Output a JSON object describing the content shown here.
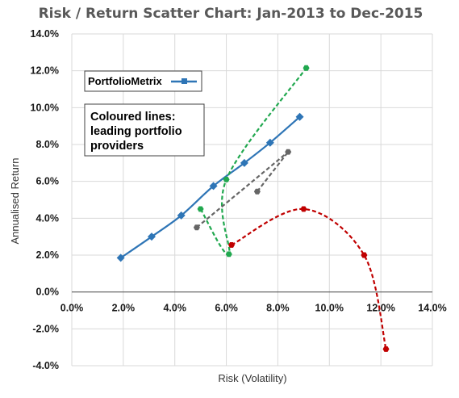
{
  "chart_data": {
    "type": "scatter",
    "title": "Risk / Return Scatter Chart: Jan-2013 to Dec-2015",
    "xlabel": "Risk (Volatility)",
    "ylabel": "Annualised Return",
    "xlim": [
      0,
      14
    ],
    "ylim": [
      -4,
      14
    ],
    "x_ticks": [
      0,
      2,
      4,
      6,
      8,
      10,
      12,
      14
    ],
    "y_ticks": [
      -4,
      -2,
      0,
      2,
      4,
      6,
      8,
      10,
      12,
      14
    ],
    "x_tick_labels": [
      "0.0%",
      "2.0%",
      "4.0%",
      "6.0%",
      "8.0%",
      "10.0%",
      "12.0%",
      "14.0%"
    ],
    "y_tick_labels": [
      "-4.0%",
      "-2.0%",
      "0.0%",
      "2.0%",
      "4.0%",
      "6.0%",
      "8.0%",
      "10.0%",
      "12.0%",
      "14.0%"
    ],
    "grid": true,
    "legend": {
      "position": "top-left",
      "entries": [
        "PortfolioMetrix"
      ]
    },
    "annotation": [
      "Coloured lines:",
      "leading portfolio",
      "providers"
    ],
    "series": [
      {
        "name": "PortfolioMetrix",
        "color": "#2e75b6",
        "style": "solid",
        "marker": "diamond",
        "points": [
          [
            1.9,
            1.85
          ],
          [
            3.1,
            3.0
          ],
          [
            4.25,
            4.15
          ],
          [
            5.5,
            5.75
          ],
          [
            6.7,
            7.0
          ],
          [
            7.7,
            8.1
          ],
          [
            8.85,
            9.5
          ]
        ]
      },
      {
        "color": "#21a84f",
        "style": "dashed",
        "marker": "hexagon",
        "points": [
          [
            5.0,
            4.5
          ],
          [
            6.1,
            2.05
          ],
          [
            6.0,
            6.1
          ],
          [
            9.1,
            12.15
          ]
        ]
      },
      {
        "color": "#c00000",
        "style": "dashed",
        "marker": "hexagon",
        "points": [
          [
            6.2,
            2.55
          ],
          [
            9.0,
            4.5
          ],
          [
            11.35,
            2.0
          ],
          [
            12.2,
            -3.1
          ]
        ]
      },
      {
        "color": "#666666",
        "style": "dashed",
        "marker": "hexagon",
        "points": [
          [
            4.85,
            3.5
          ],
          [
            7.2,
            5.45
          ],
          [
            8.4,
            7.6
          ]
        ],
        "segments": [
          [
            0,
            2
          ],
          [
            1,
            2
          ]
        ]
      }
    ]
  }
}
